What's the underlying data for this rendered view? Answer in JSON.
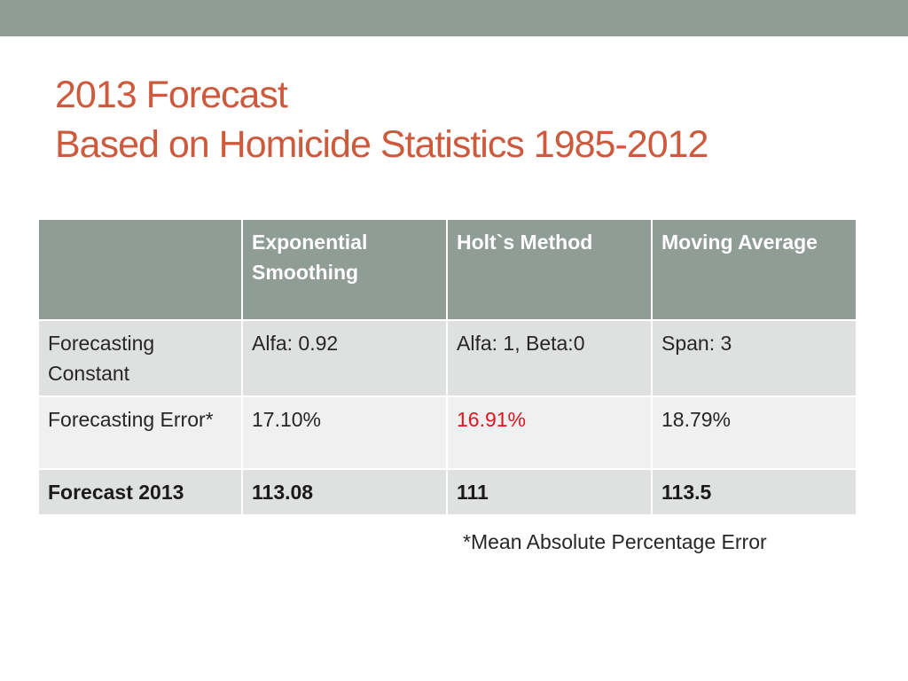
{
  "slide": {
    "title_line1": "2013 Forecast",
    "title_line2": "Based on Homicide Statistics 1985-2012",
    "footnote": "*Mean Absolute Percentage Error"
  },
  "table": {
    "headers": [
      "",
      "Exponential Smoothing",
      "Holt`s Method",
      "Moving Average"
    ],
    "rows": [
      {
        "label": "Forecasting Constant",
        "cells": [
          "Alfa: 0.92",
          "Alfa: 1, Beta:0",
          "Span: 3"
        ]
      },
      {
        "label": "Forecasting Error*",
        "cells": [
          "17.10%",
          "16.91%",
          "18.79%"
        ]
      },
      {
        "label": "Forecast 2013",
        "cells": [
          "113.08",
          "111",
          "113.5"
        ]
      }
    ]
  },
  "colors": {
    "accent_bar": "#8f9d96",
    "title": "#cd5a3c",
    "highlight_value": "#e0141e"
  }
}
